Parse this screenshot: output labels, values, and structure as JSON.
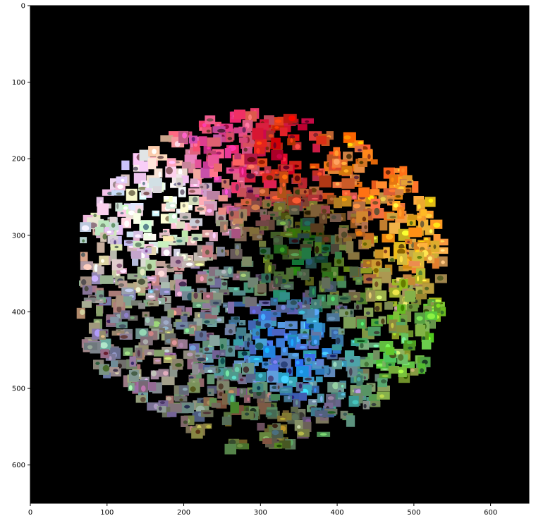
{
  "chart_data": {
    "type": "scatter",
    "description_kind": "image-embedding-mosaic",
    "title": "",
    "xlabel": "",
    "ylabel": "",
    "xlim": [
      0,
      650
    ],
    "ylim": [
      650,
      0
    ],
    "y_inverted": true,
    "grid": false,
    "background_color": "#000000",
    "x_ticks": [
      0,
      100,
      200,
      300,
      400,
      500,
      600
    ],
    "y_ticks": [
      0,
      100,
      200,
      300,
      400,
      500,
      600
    ],
    "x_tick_labels": [
      "0",
      "100",
      "200",
      "300",
      "400",
      "500",
      "600"
    ],
    "y_tick_labels": [
      "0",
      "100",
      "200",
      "300",
      "400",
      "500",
      "600"
    ],
    "cloud_extent": {
      "x": [
        62,
        540
      ],
      "y": [
        135,
        580
      ]
    },
    "color_regions": [
      {
        "name": "white",
        "color": "#f0eeea",
        "center": [
          170,
          250
        ]
      },
      {
        "name": "pink",
        "color": "#e0408a",
        "center": [
          255,
          175
        ]
      },
      {
        "name": "red",
        "color": "#c81820",
        "center": [
          330,
          185
        ]
      },
      {
        "name": "orange",
        "color": "#f07a20",
        "center": [
          440,
          210
        ]
      },
      {
        "name": "yellow-orange",
        "color": "#e8a030",
        "center": [
          500,
          300
        ]
      },
      {
        "name": "dark-green",
        "color": "#2e5a24",
        "center": [
          360,
          320
        ]
      },
      {
        "name": "blue",
        "color": "#3a88d8",
        "center": [
          340,
          450
        ]
      },
      {
        "name": "light-green",
        "color": "#6ab040",
        "center": [
          520,
          440
        ]
      },
      {
        "name": "gray",
        "color": "#8a8a86",
        "center": [
          130,
          460
        ]
      },
      {
        "name": "olive",
        "color": "#6a6a3a",
        "center": [
          300,
          560
        ]
      }
    ]
  }
}
